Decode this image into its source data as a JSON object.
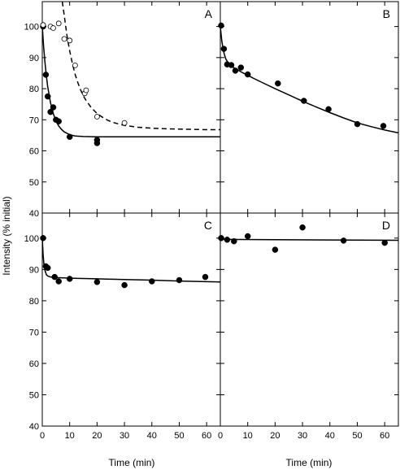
{
  "chart_data": {
    "type": "scatter",
    "xlabel": "Time (min)",
    "ylabel": "Intensity (% initial)",
    "xlim": [
      0,
      65
    ],
    "ylim": [
      40,
      108
    ],
    "xticks": [
      0,
      10,
      20,
      30,
      40,
      50,
      60
    ],
    "yticks": [
      40,
      50,
      60,
      70,
      80,
      90,
      100
    ],
    "grid": false,
    "legend": "none",
    "panels": [
      {
        "label": "A",
        "series": [
          {
            "marker": "filled-circle",
            "x": [
              0.3,
              1.3,
              2,
              3,
              4,
              5,
              6,
              10,
              20,
              20
            ],
            "y": [
              100,
              84.5,
              77.5,
              72.5,
              74,
              70,
              69.5,
              64.5,
              63.5,
              62.5
            ]
          },
          {
            "marker": "open-circle",
            "x": [
              0.3,
              3,
              4,
              6,
              8,
              10,
              12,
              15.5,
              16,
              20,
              30
            ],
            "y": [
              100.5,
              100,
              99.5,
              101,
              96,
              95.5,
              87.5,
              78.5,
              79.5,
              71,
              69
            ]
          }
        ],
        "fits": [
          {
            "style": "solid",
            "x": [
              0,
              0.5,
              1,
              1.5,
              2,
              3,
              4,
              5,
              6,
              7,
              8,
              10,
              12,
              15,
              20,
              30,
              40,
              50,
              60,
              65
            ],
            "y": [
              100,
              93.4,
              88.2,
              84.0,
              80.6,
              75.5,
              72.0,
              69.6,
              68.0,
              66.9,
              66.1,
              65.2,
              64.8,
              64.6,
              64.5,
              64.5,
              64.5,
              64.5,
              64.5,
              64.5
            ]
          },
          {
            "style": "dashed",
            "x": [
              7.3,
              8,
              9,
              10,
              11,
              12,
              13,
              14,
              15,
              16,
              18,
              20,
              22,
              24,
              26,
              28,
              30,
              35,
              40,
              45,
              50,
              55,
              60,
              65
            ],
            "y": [
              108,
              103.6,
              97.2,
              92.2,
              88.0,
              84.6,
              81.9,
              79.6,
              77.7,
              76.2,
              73.8,
              72.0,
              70.8,
              69.8,
              69.1,
              68.6,
              68.2,
              67.6,
              67.3,
              67.1,
              67.0,
              66.9,
              66.8,
              66.8
            ]
          }
        ]
      },
      {
        "label": "B",
        "series": [
          {
            "marker": "filled-circle",
            "x": [
              0.3,
              1.3,
              2.5,
              4,
              5.5,
              7.5,
              10,
              21,
              30.5,
              39.5,
              50,
              59.5
            ],
            "y": [
              100.3,
              92.8,
              87.8,
              87.6,
              85.8,
              86.8,
              84.6,
              81.7,
              76.1,
              73.4,
              68.6,
              68.0
            ]
          }
        ],
        "fits": [
          {
            "style": "solid",
            "x": [
              0,
              0.5,
              1,
              1.5,
              2,
              3,
              4,
              5,
              6,
              8,
              10,
              12,
              15,
              20,
              25,
              30,
              35,
              40,
              45,
              50,
              55,
              60,
              65
            ],
            "y": [
              100,
              95.6,
              92.8,
              90.9,
              89.6,
              88.1,
              87.3,
              86.7,
              86.2,
              85.2,
              84.3,
              83.4,
              82.1,
              80.0,
              78.0,
              76.0,
              74.1,
              72.3,
              70.6,
              69.0,
              67.8,
              66.7,
              65.8
            ]
          }
        ]
      },
      {
        "label": "C",
        "series": [
          {
            "marker": "filled-circle",
            "x": [
              0.3,
              1.3,
              2,
              4.5,
              6,
              10,
              20,
              30,
              40,
              50,
              59.5
            ],
            "y": [
              100.0,
              91.0,
              90.5,
              87.6,
              86.2,
              87.0,
              86.0,
              85.0,
              86.2,
              86.6,
              87.6
            ]
          }
        ],
        "fits": [
          {
            "style": "solid",
            "x": [
              0,
              0.3,
              0.6,
              1,
              1.5,
              2,
              3,
              4,
              5,
              8,
              10,
              15,
              20,
              30,
              40,
              50,
              60,
              65
            ],
            "y": [
              100,
              94.8,
              91.7,
              89.6,
              88.3,
              87.9,
              87.6,
              87.5,
              87.4,
              87.3,
              87.2,
              87.1,
              87.0,
              86.8,
              86.6,
              86.3,
              86.1,
              86.0
            ]
          }
        ]
      },
      {
        "label": "D",
        "series": [
          {
            "marker": "filled-circle",
            "x": [
              0.3,
              2.5,
              5,
              10,
              20,
              30,
              45,
              60
            ],
            "y": [
              100.0,
              99.5,
              99.0,
              100.6,
              96.3,
              103.4,
              99.2,
              98.5
            ]
          }
        ],
        "fits": [
          {
            "style": "solid",
            "x": [
              0,
              65
            ],
            "y": [
              99.6,
              99.3
            ]
          }
        ]
      }
    ]
  }
}
